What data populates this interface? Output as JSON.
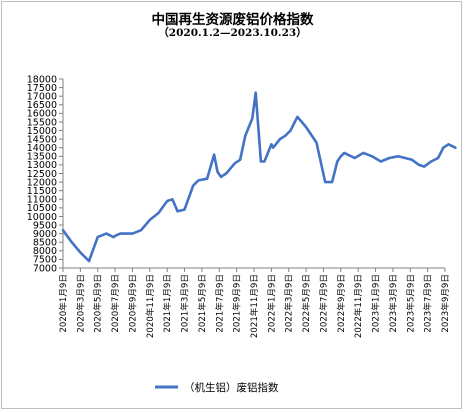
{
  "chart_data": {
    "type": "line",
    "title": "中国再生资源废铝价格指数",
    "subtitle": "（2020.1.2—2023.10.23）",
    "xlabel": "",
    "ylabel": "",
    "ylim": [
      7000,
      18000
    ],
    "yticks": [
      "7000",
      "7500",
      "8000",
      "8500",
      "9000",
      "9500",
      "10000",
      "10500",
      "11000",
      "11500",
      "12000",
      "12500",
      "13000",
      "13500",
      "14000",
      "14500",
      "15000",
      "15500",
      "16000",
      "16500",
      "17000",
      "17500",
      "18000"
    ],
    "xticks": [
      "2020年1月9日",
      "2020年3月9日",
      "2020年5月9日",
      "2020年7月9日",
      "2020年9月9日",
      "2020年11月9日",
      "2021年1月9日",
      "2021年3月9日",
      "2021年5月9日",
      "2021年7月9日",
      "2021年9月9日",
      "2021年11月9日",
      "2022年1月9日",
      "2022年3月9日",
      "2022年5月9日",
      "2022年7月9日",
      "2022年9月9日",
      "2022年11月9日",
      "2023年1月9日",
      "2023年3月9日",
      "2023年5月9日",
      "2023年7月9日",
      "2023年9月9日"
    ],
    "legend_position": "bottom",
    "grid": false,
    "series": [
      {
        "name": "（机生铝）废铝指数",
        "color": "#4472c4",
        "x": [
          0.0,
          0.5,
          1.0,
          1.5,
          2.0,
          2.5,
          2.9,
          3.05,
          3.3,
          3.6,
          4.0,
          4.5,
          5.0,
          5.5,
          6.0,
          6.3,
          6.6,
          7.0,
          7.5,
          7.8,
          8.3,
          8.7,
          8.9,
          9.1,
          9.4,
          9.9,
          10.2,
          10.5,
          10.9,
          11.1,
          11.4,
          11.6,
          12.0,
          12.1,
          12.5,
          12.8,
          13.1,
          13.5,
          14.0,
          14.6,
          15.1,
          15.5,
          15.8,
          16.0,
          16.2,
          16.8,
          17.3,
          17.8,
          18.3,
          18.8,
          19.3,
          20.1,
          20.5,
          20.8,
          21.2,
          21.6,
          21.9,
          22.2,
          22.6
        ],
        "values": [
          9200,
          8500,
          7900,
          7400,
          8800,
          9000,
          8800,
          8900,
          9000,
          9000,
          9000,
          9200,
          9800,
          10200,
          10900,
          11000,
          10300,
          10400,
          11800,
          12100,
          12200,
          13600,
          12600,
          12300,
          12500,
          13100,
          13300,
          14700,
          15700,
          17200,
          13200,
          13200,
          14200,
          14000,
          14500,
          14700,
          15000,
          15800,
          15200,
          14300,
          12000,
          12000,
          13200,
          13500,
          13700,
          13400,
          13700,
          13500,
          13200,
          13400,
          13500,
          13300,
          13000,
          12900,
          13200,
          13400,
          14000,
          14200,
          14000
        ]
      }
    ]
  }
}
